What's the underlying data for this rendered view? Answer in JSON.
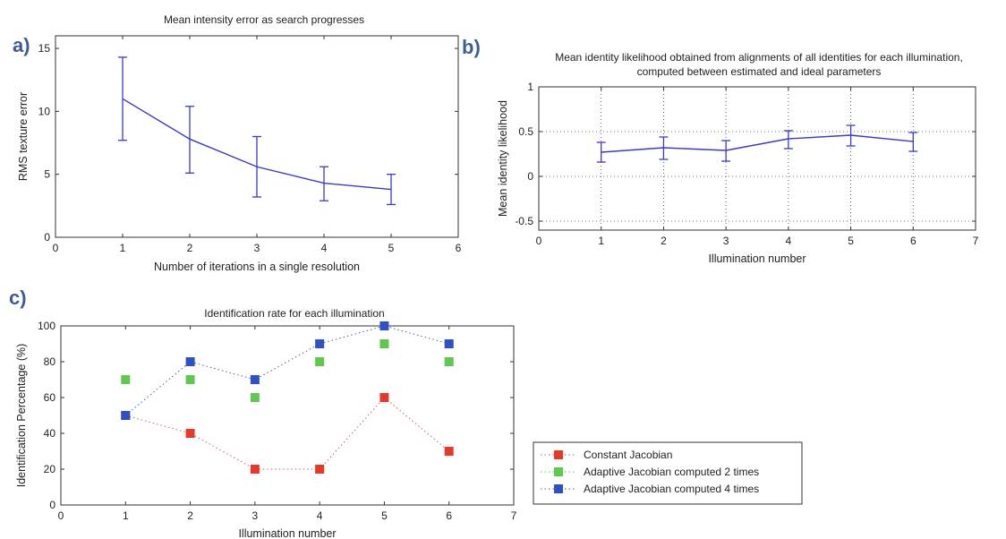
{
  "figure": {
    "panels": [
      {
        "id": "a",
        "label": "a)"
      },
      {
        "id": "b",
        "label": "b)"
      },
      {
        "id": "c",
        "label": "c)"
      }
    ]
  },
  "chart_data": [
    {
      "id": "a",
      "type": "line",
      "title": "Mean intensity error as search progresses",
      "xlabel": "Number of iterations in a single resolution",
      "ylabel": "RMS texture error",
      "xlim": [
        0,
        6
      ],
      "ylim": [
        0,
        16
      ],
      "xticks": [
        0,
        1,
        2,
        3,
        4,
        5,
        6
      ],
      "yticks": [
        0,
        5,
        10,
        15
      ],
      "grid": false,
      "series": [
        {
          "color": "#3a3ac8",
          "x": [
            1,
            2,
            3,
            4,
            5
          ],
          "y": [
            11.0,
            7.8,
            5.6,
            4.3,
            3.8
          ],
          "error_low": [
            7.7,
            5.1,
            3.2,
            2.9,
            2.6
          ],
          "error_high": [
            14.3,
            10.4,
            8.0,
            5.6,
            5.0
          ]
        }
      ]
    },
    {
      "id": "b",
      "type": "line",
      "title": [
        "Mean identity likelihood obtained from alignments of all identities for each illumination,",
        "computed between estimated and ideal parameters"
      ],
      "xlabel": "Illumination number",
      "ylabel": "Mean identity likelihood",
      "xlim": [
        0,
        7
      ],
      "ylim": [
        -0.6,
        1
      ],
      "xticks": [
        0,
        1,
        2,
        3,
        4,
        5,
        6,
        7
      ],
      "yticks": [
        -0.5,
        0,
        0.5,
        1
      ],
      "grid": true,
      "series": [
        {
          "color": "#3a3ac8",
          "x": [
            1,
            2,
            3,
            4,
            5,
            6
          ],
          "y": [
            0.27,
            0.32,
            0.29,
            0.42,
            0.46,
            0.39
          ],
          "error_low": [
            0.16,
            0.19,
            0.17,
            0.31,
            0.34,
            0.28
          ],
          "error_high": [
            0.38,
            0.44,
            0.4,
            0.51,
            0.57,
            0.49
          ]
        }
      ]
    },
    {
      "id": "c",
      "type": "scatter",
      "title": "Identification rate for each illumination",
      "xlabel": "Illumination number",
      "ylabel": "Identification Percentage (%)",
      "xlim": [
        0,
        7
      ],
      "ylim": [
        0,
        100
      ],
      "xticks": [
        0,
        1,
        2,
        3,
        4,
        5,
        6,
        7
      ],
      "yticks": [
        0,
        20,
        40,
        60,
        80,
        100
      ],
      "grid": false,
      "legend_position": "lower-right-outside",
      "series": [
        {
          "name": "Constant Jacobian",
          "color": "#e8382a",
          "line_color": "#d06060",
          "x": [
            1,
            2,
            3,
            4,
            5,
            6
          ],
          "y": [
            50,
            40,
            20,
            20,
            60,
            30
          ],
          "connected": true
        },
        {
          "name": "Adaptive Jacobian computed 2 times",
          "color": "#5ec94e",
          "line_color": "#5ec94e",
          "x": [
            1,
            2,
            3,
            4,
            5,
            6
          ],
          "y": [
            70,
            70,
            60,
            80,
            90,
            80
          ],
          "connected": false
        },
        {
          "name": "Adaptive Jacobian computed 4 times",
          "color": "#2f50c8",
          "line_color": "#5060a0",
          "x": [
            1,
            2,
            3,
            4,
            5,
            6
          ],
          "y": [
            50,
            80,
            70,
            90,
            100,
            90
          ],
          "connected": true
        }
      ]
    }
  ]
}
